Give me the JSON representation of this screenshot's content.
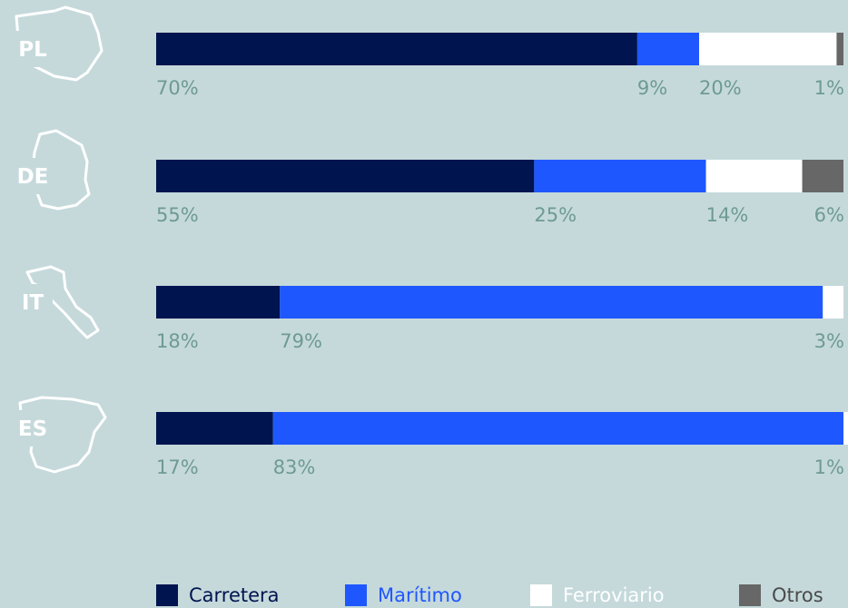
{
  "colors": {
    "background": "#c5d9db",
    "label": "#6e9a94"
  },
  "chart_data": {
    "type": "bar",
    "orientation": "horizontal-stacked-100",
    "categories": [
      "PL",
      "DE",
      "IT",
      "ES"
    ],
    "series": [
      {
        "name": "Carretera",
        "color": "#001450",
        "legend_color": "#001450",
        "values": [
          70,
          55,
          18,
          17
        ]
      },
      {
        "name": "Marítimo",
        "color": "#1f57ff",
        "legend_color": "#1f57ff",
        "values": [
          9,
          25,
          79,
          83
        ]
      },
      {
        "name": "Ferroviario",
        "color": "#ffffff",
        "legend_color": "#ffffff",
        "values": [
          20,
          14,
          3,
          1
        ]
      },
      {
        "name": "Otros",
        "color": "#676767",
        "legend_color": "#676767",
        "values": [
          1,
          6,
          0,
          0
        ]
      }
    ],
    "labels": [
      [
        "70%",
        "9%",
        "20%",
        "1%"
      ],
      [
        "55%",
        "25%",
        "14%",
        "6%"
      ],
      [
        "18%",
        "79%",
        "",
        "3%"
      ],
      [
        "17%",
        "83%",
        "",
        "1%"
      ]
    ],
    "xlim": [
      0,
      100
    ],
    "legend": "bottom"
  }
}
